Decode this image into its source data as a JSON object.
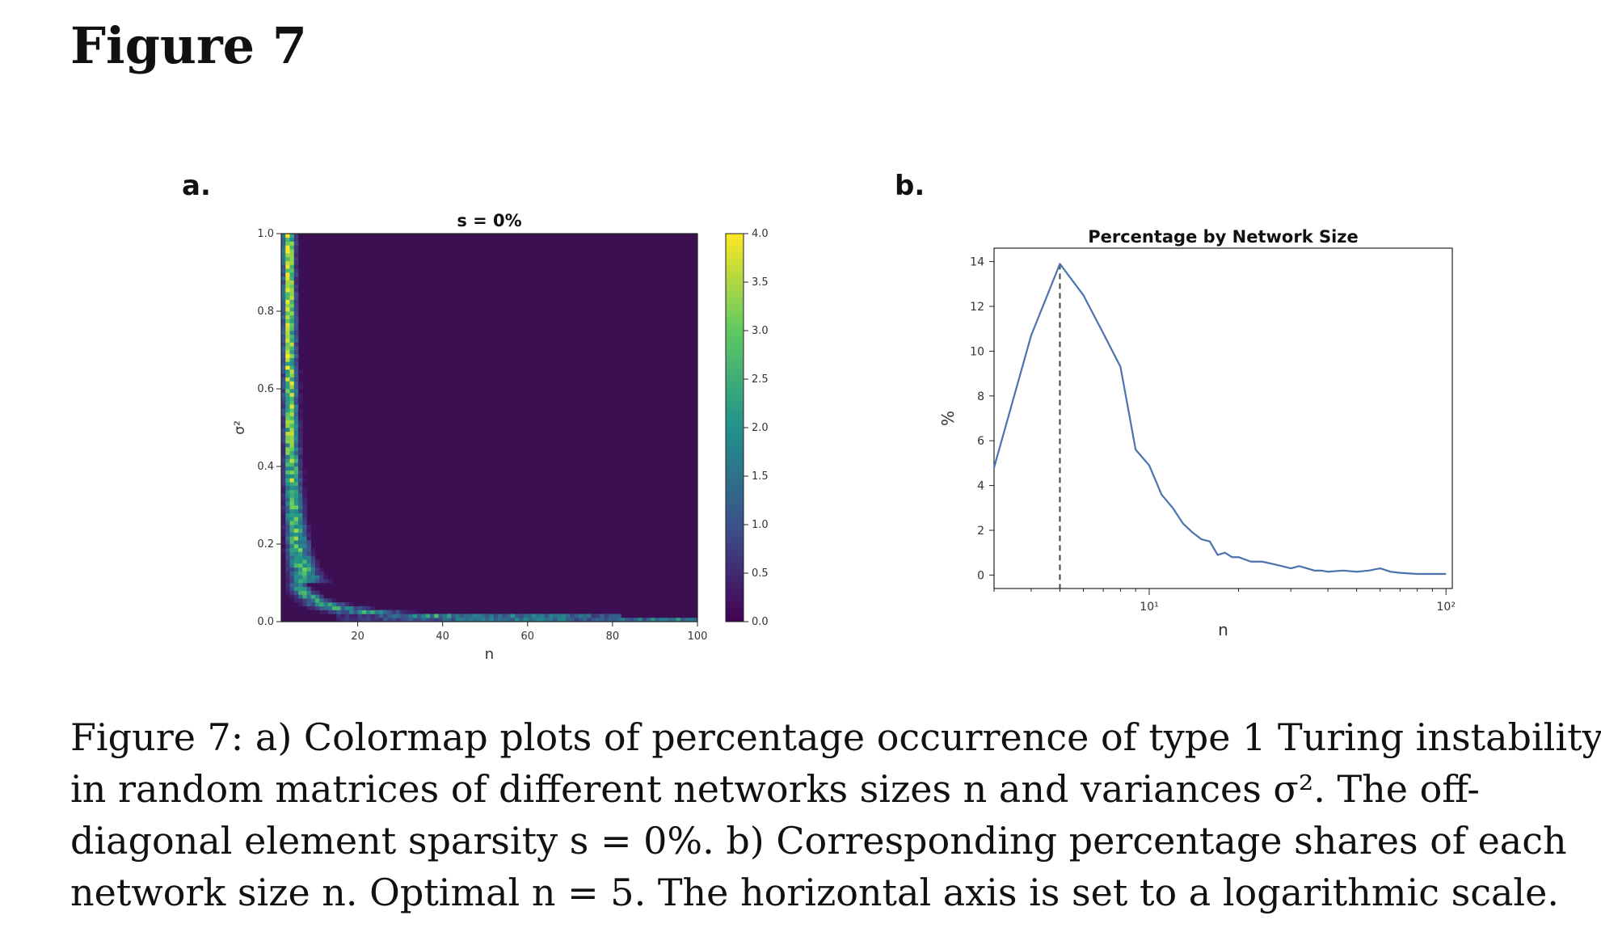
{
  "figure_title": "Figure 7",
  "panels": [
    {
      "letter": "a."
    },
    {
      "letter": "b."
    }
  ],
  "caption_lines": [
    "Figure 7: a) Colormap plots of percentage occurrence of type 1 Turing instability",
    "in random matrices of different networks sizes n and variances σ². The off-",
    "diagonal element sparsity s = 0%. b) Corresponding percentage shares of each",
    "network size n. Optimal n = 5. The horizontal axis is set to a logarithmic scale."
  ],
  "chart_data": [
    {
      "type": "heatmap",
      "title": "s = 0%",
      "xlabel": "n",
      "ylabel": "σ²",
      "xlim": [
        2,
        100
      ],
      "ylim": [
        0.0,
        1.0
      ],
      "xticks": [
        "20",
        "40",
        "60",
        "80",
        "100"
      ],
      "yticks": [
        "0.0",
        "0.2",
        "0.4",
        "0.6",
        "0.8",
        "1.0"
      ],
      "colorbar": {
        "range": [
          0.0,
          4.0
        ],
        "ticks": [
          "0.0",
          "0.5",
          "1.0",
          "1.5",
          "2.0",
          "2.5",
          "3.0",
          "3.5",
          "4.0"
        ],
        "colormap": "viridis"
      },
      "pattern": "high values concentrated along a curve σ² ≈ c/n: a vertical band at n ≈ 3–8 for large σ², bending to a horizontal band at σ² ≈ 0.02 for n ≈ 20–80; zero elsewhere",
      "colors": {
        "low": "#440154",
        "mid": "#21918c",
        "high": "#fde725",
        "background": "#3b0f52"
      }
    },
    {
      "type": "line",
      "title": "Percentage by Network Size",
      "xlabel": "n",
      "ylabel": "%",
      "xscale": "log",
      "xlim": [
        3,
        105
      ],
      "ylim": [
        -0.6,
        14.6
      ],
      "xticks": [
        "10¹",
        "10²"
      ],
      "yticks": [
        "0",
        "2",
        "4",
        "6",
        "8",
        "10",
        "12",
        "14"
      ],
      "x": [
        3,
        4,
        5,
        6,
        7,
        8,
        9,
        10,
        11,
        12,
        13,
        14,
        15,
        16,
        17,
        18,
        19,
        20,
        22,
        24,
        26,
        28,
        30,
        32,
        34,
        36,
        38,
        40,
        45,
        50,
        55,
        60,
        65,
        70,
        80,
        90,
        100
      ],
      "y": [
        4.8,
        10.7,
        13.9,
        12.5,
        10.8,
        9.3,
        5.6,
        4.9,
        3.6,
        3.0,
        2.3,
        1.9,
        1.6,
        1.5,
        0.9,
        1.0,
        0.8,
        0.8,
        0.6,
        0.6,
        0.5,
        0.4,
        0.3,
        0.4,
        0.3,
        0.2,
        0.2,
        0.15,
        0.2,
        0.15,
        0.2,
        0.3,
        0.15,
        0.1,
        0.05,
        0.05,
        0.05
      ],
      "vline_x": 5,
      "line_color": "#4c72b0"
    }
  ]
}
